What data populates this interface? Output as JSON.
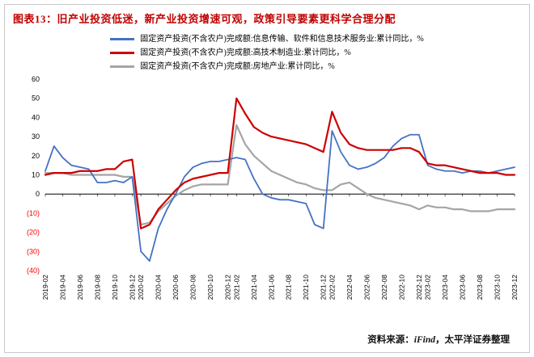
{
  "figure": {
    "title": "图表13：旧产业投资低迷，新产业投资增速可观，政策引导要素更科学合理分配",
    "source_prefix": "资料来源：",
    "source_brand": "iFind",
    "source_suffix": "，太平洋证券整理"
  },
  "chart_data": {
    "type": "line",
    "title": "",
    "xlabel": "",
    "ylabel": "",
    "ylim": [
      -40,
      60
    ],
    "yticks": [
      60,
      50,
      40,
      30,
      20,
      10,
      0,
      -10,
      -20,
      -30,
      -40
    ],
    "negative_tick_style": "parentheses-red",
    "grid": false,
    "legend_position": "top-center",
    "x": [
      "2019-02",
      "2019-03",
      "2019-04",
      "2019-05",
      "2019-06",
      "2019-07",
      "2019-08",
      "2019-09",
      "2019-10",
      "2019-11",
      "2019-12",
      "2020-02",
      "2020-03",
      "2020-04",
      "2020-05",
      "2020-06",
      "2020-07",
      "2020-08",
      "2020-09",
      "2020-10",
      "2020-11",
      "2020-12",
      "2021-02",
      "2021-03",
      "2021-04",
      "2021-05",
      "2021-06",
      "2021-07",
      "2021-08",
      "2021-09",
      "2021-10",
      "2021-11",
      "2021-12",
      "2022-02",
      "2022-03",
      "2022-04",
      "2022-05",
      "2022-06",
      "2022-07",
      "2022-08",
      "2022-09",
      "2022-10",
      "2022-11",
      "2022-12",
      "2023-02",
      "2023-03",
      "2023-04",
      "2023-05",
      "2023-06",
      "2023-07",
      "2023-08",
      "2023-09",
      "2023-10",
      "2023-11",
      "2023-12"
    ],
    "x_tick_labels": [
      "2019-02",
      "2019-04",
      "2019-06",
      "2019-08",
      "2019-10",
      "2019-12",
      "2020-02",
      "2020-04",
      "2020-06",
      "2020-08",
      "2020-10",
      "2020-12",
      "2021-02",
      "2021-04",
      "2021-06",
      "2021-08",
      "2021-10",
      "2021-12",
      "2022-02",
      "2022-04",
      "2022-06",
      "2022-08",
      "2022-10",
      "2022-12",
      "2023-02",
      "2023-04",
      "2023-06",
      "2023-08",
      "2023-10",
      "2023-12"
    ],
    "series": [
      {
        "name": "固定资产投资(不含农户)完成额:信息传输、软件和信息技术服务业:累计同比，%",
        "color": "#4472C4",
        "width": 1.8,
        "values": [
          12,
          25,
          19,
          15,
          14,
          13,
          6,
          6,
          7,
          6,
          9,
          -30,
          -35,
          -18,
          -8,
          0,
          9,
          14,
          16,
          17,
          17,
          18,
          19,
          18,
          8,
          0,
          -2,
          -3,
          -3,
          -4,
          -5,
          -16,
          -18,
          33,
          22,
          15,
          13,
          14,
          16,
          19,
          25,
          29,
          31,
          31,
          15,
          13,
          12,
          12,
          11,
          12,
          12,
          11,
          12,
          13,
          14
        ]
      },
      {
        "name": "固定资产投资(不含农户)完成额:高技术制造业:累计同比，%",
        "color": "#CC0000",
        "width": 2.2,
        "values": [
          10,
          11,
          11,
          11,
          12,
          12,
          12,
          13,
          13,
          17,
          18,
          -18,
          -16,
          -8,
          -3,
          2,
          6,
          8,
          9,
          10,
          11,
          11,
          50,
          42,
          35,
          32,
          30,
          29,
          28,
          27,
          26,
          24,
          22,
          43,
          32,
          26,
          24,
          23,
          23,
          23,
          23,
          24,
          24,
          22,
          16,
          15,
          15,
          14,
          13,
          12,
          11,
          11,
          11,
          10,
          10
        ]
      },
      {
        "name": "固定资产投资(不含农户)完成额:房地产业:累计同比，%",
        "color": "#A5A5A5",
        "width": 2.2,
        "values": [
          11,
          11,
          11,
          10,
          10,
          10,
          10,
          10,
          10,
          9,
          9,
          -16,
          -15,
          -9,
          -5,
          -1,
          2,
          4,
          5,
          5,
          5,
          5,
          36,
          26,
          20,
          16,
          12,
          10,
          8,
          6,
          5,
          3,
          2,
          2,
          5,
          6,
          3,
          0,
          -2,
          -3,
          -4,
          -5,
          -6,
          -8,
          -6,
          -7,
          -7,
          -8,
          -8,
          -9,
          -9,
          -9,
          -8,
          -8,
          -8
        ]
      }
    ]
  }
}
